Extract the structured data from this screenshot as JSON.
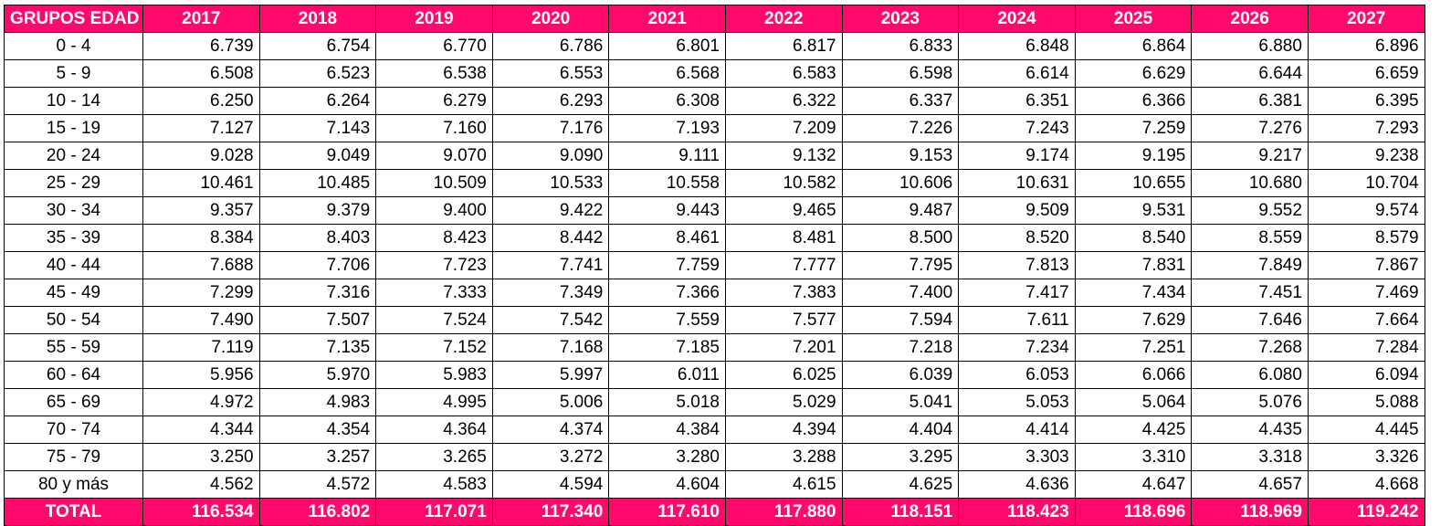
{
  "table": {
    "header": [
      "GRUPOS EDAD",
      "2017",
      "2018",
      "2019",
      "2020",
      "2021",
      "2022",
      "2023",
      "2024",
      "2025",
      "2026",
      "2027"
    ],
    "rows": [
      {
        "group": "0 - 4",
        "values": [
          "6.739",
          "6.754",
          "6.770",
          "6.786",
          "6.801",
          "6.817",
          "6.833",
          "6.848",
          "6.864",
          "6.880",
          "6.896"
        ]
      },
      {
        "group": "5 - 9",
        "values": [
          "6.508",
          "6.523",
          "6.538",
          "6.553",
          "6.568",
          "6.583",
          "6.598",
          "6.614",
          "6.629",
          "6.644",
          "6.659"
        ]
      },
      {
        "group": "10 - 14",
        "values": [
          "6.250",
          "6.264",
          "6.279",
          "6.293",
          "6.308",
          "6.322",
          "6.337",
          "6.351",
          "6.366",
          "6.381",
          "6.395"
        ]
      },
      {
        "group": "15 - 19",
        "values": [
          "7.127",
          "7.143",
          "7.160",
          "7.176",
          "7.193",
          "7.209",
          "7.226",
          "7.243",
          "7.259",
          "7.276",
          "7.293"
        ]
      },
      {
        "group": "20 - 24",
        "values": [
          "9.028",
          "9.049",
          "9.070",
          "9.090",
          "9.111",
          "9.132",
          "9.153",
          "9.174",
          "9.195",
          "9.217",
          "9.238"
        ]
      },
      {
        "group": "25 - 29",
        "values": [
          "10.461",
          "10.485",
          "10.509",
          "10.533",
          "10.558",
          "10.582",
          "10.606",
          "10.631",
          "10.655",
          "10.680",
          "10.704"
        ]
      },
      {
        "group": "30 - 34",
        "values": [
          "9.357",
          "9.379",
          "9.400",
          "9.422",
          "9.443",
          "9.465",
          "9.487",
          "9.509",
          "9.531",
          "9.552",
          "9.574"
        ]
      },
      {
        "group": "35 - 39",
        "values": [
          "8.384",
          "8.403",
          "8.423",
          "8.442",
          "8.461",
          "8.481",
          "8.500",
          "8.520",
          "8.540",
          "8.559",
          "8.579"
        ]
      },
      {
        "group": "40 - 44",
        "values": [
          "7.688",
          "7.706",
          "7.723",
          "7.741",
          "7.759",
          "7.777",
          "7.795",
          "7.813",
          "7.831",
          "7.849",
          "7.867"
        ]
      },
      {
        "group": "45 - 49",
        "values": [
          "7.299",
          "7.316",
          "7.333",
          "7.349",
          "7.366",
          "7.383",
          "7.400",
          "7.417",
          "7.434",
          "7.451",
          "7.469"
        ]
      },
      {
        "group": "50 - 54",
        "values": [
          "7.490",
          "7.507",
          "7.524",
          "7.542",
          "7.559",
          "7.577",
          "7.594",
          "7.611",
          "7.629",
          "7.646",
          "7.664"
        ]
      },
      {
        "group": "55 - 59",
        "values": [
          "7.119",
          "7.135",
          "7.152",
          "7.168",
          "7.185",
          "7.201",
          "7.218",
          "7.234",
          "7.251",
          "7.268",
          "7.284"
        ]
      },
      {
        "group": "60 - 64",
        "values": [
          "5.956",
          "5.970",
          "5.983",
          "5.997",
          "6.011",
          "6.025",
          "6.039",
          "6.053",
          "6.066",
          "6.080",
          "6.094"
        ]
      },
      {
        "group": "65 - 69",
        "values": [
          "4.972",
          "4.983",
          "4.995",
          "5.006",
          "5.018",
          "5.029",
          "5.041",
          "5.053",
          "5.064",
          "5.076",
          "5.088"
        ]
      },
      {
        "group": "70 - 74",
        "values": [
          "4.344",
          "4.354",
          "4.364",
          "4.374",
          "4.384",
          "4.394",
          "4.404",
          "4.414",
          "4.425",
          "4.435",
          "4.445"
        ]
      },
      {
        "group": "75 - 79",
        "values": [
          "3.250",
          "3.257",
          "3.265",
          "3.272",
          "3.280",
          "3.288",
          "3.295",
          "3.303",
          "3.310",
          "3.318",
          "3.326"
        ]
      },
      {
        "group": "80 y más",
        "values": [
          "4.562",
          "4.572",
          "4.583",
          "4.594",
          "4.604",
          "4.615",
          "4.625",
          "4.636",
          "4.647",
          "4.657",
          "4.668"
        ]
      }
    ],
    "total": {
      "label": "TOTAL",
      "values": [
        "116.534",
        "116.802",
        "117.071",
        "117.340",
        "117.610",
        "117.880",
        "118.151",
        "118.423",
        "118.696",
        "118.969",
        "119.242"
      ]
    }
  },
  "colors": {
    "accent": "#ff0a6c",
    "text": "#000000",
    "header_text": "#ffffff"
  }
}
